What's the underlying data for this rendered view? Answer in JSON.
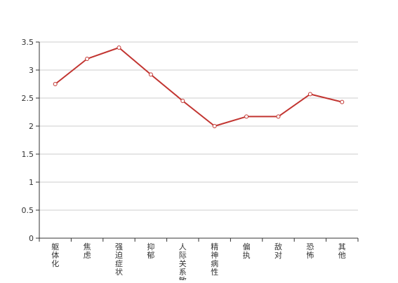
{
  "chart_data": {
    "type": "line",
    "categories": [
      "躯体化",
      "焦虑",
      "强迫症状",
      "抑郁",
      "人际关系敏感",
      "精神病性",
      "偏执",
      "敌对",
      "恐怖",
      "其他"
    ],
    "series": [
      {
        "values": [
          2.75,
          3.2,
          3.4,
          2.92,
          2.45,
          2.0,
          2.17,
          2.17,
          2.57,
          2.43
        ]
      }
    ],
    "ylim": [
      0,
      3.5
    ],
    "yticks": [
      0,
      0.5,
      1,
      1.5,
      2,
      2.5,
      3,
      3.5
    ],
    "grid": true,
    "line_color": "#c23531",
    "title": "",
    "xlabel": "",
    "ylabel": ""
  }
}
